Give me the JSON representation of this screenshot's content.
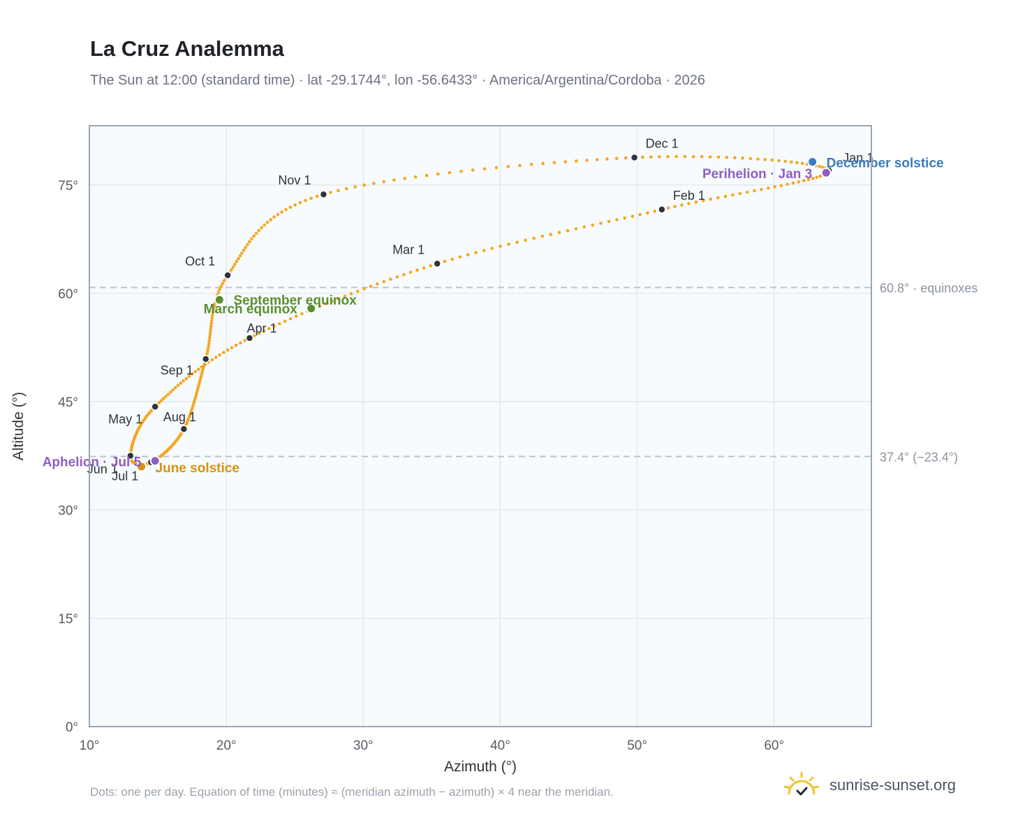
{
  "title": "La Cruz Analemma",
  "subtitle": "The Sun at 12:00 (standard time) · lat -29.1744°, lon -56.6433° · America/Argentina/Cordoba · 2026",
  "footnote": "Dots: one per day. Equation of time (minutes) ≈ (meridian azimuth − azimuth) × 4 near the meridian.",
  "brand": {
    "text": "sunrise-sunset.org",
    "icon": "sun-logo-icon"
  },
  "colors": {
    "curve": "#f5a623",
    "month_marker": "#2d3339",
    "equinox": "#5a8f2e",
    "june_solstice": "#d4920f",
    "december_solstice": "#3a7bbf",
    "apsis": "#8f5fbf",
    "grid": "#e3e8ee",
    "plot_bg": "#f8fbfd",
    "frame": "#9aa5b4"
  },
  "chart_data": {
    "type": "scatter",
    "xlabel": "Azimuth (°)",
    "ylabel": "Altitude (°)",
    "xlim": [
      10,
      67.1
    ],
    "ylim": [
      0,
      83.2
    ],
    "grid": true,
    "x_ticks": [
      "10°",
      "20°",
      "30°",
      "40°",
      "50°",
      "60°"
    ],
    "y_ticks": [
      "0°",
      "15°",
      "30°",
      "45°",
      "60°",
      "75°"
    ],
    "reference_lines": [
      {
        "y": 60.8,
        "label": "60.8° · equinoxes"
      },
      {
        "y": 37.4,
        "label": "37.4° (−23.4°)"
      }
    ],
    "month_markers": [
      {
        "label": "Jan 1",
        "azimuth": 64.0,
        "altitude": 77.0
      },
      {
        "label": "Feb 1",
        "azimuth": 51.8,
        "altitude": 71.6
      },
      {
        "label": "Mar 1",
        "azimuth": 35.4,
        "altitude": 64.1
      },
      {
        "label": "Apr 1",
        "azimuth": 21.7,
        "altitude": 53.8
      },
      {
        "label": "May 1",
        "azimuth": 14.8,
        "altitude": 44.3
      },
      {
        "label": "Jun 1",
        "azimuth": 13.0,
        "altitude": 37.5
      },
      {
        "label": "Jul 1",
        "azimuth": 14.5,
        "altitude": 36.6
      },
      {
        "label": "Aug 1",
        "azimuth": 16.9,
        "altitude": 41.2
      },
      {
        "label": "Sep 1",
        "azimuth": 18.5,
        "altitude": 50.9
      },
      {
        "label": "Oct 1",
        "azimuth": 20.1,
        "altitude": 62.5
      },
      {
        "label": "Nov 1",
        "azimuth": 27.1,
        "altitude": 73.7
      },
      {
        "label": "Dec 1",
        "azimuth": 49.8,
        "altitude": 78.8
      }
    ],
    "events": [
      {
        "label": "March equinox",
        "azimuth": 26.2,
        "altitude": 57.9,
        "kind": "equinox"
      },
      {
        "label": "September equinox",
        "azimuth": 19.5,
        "altitude": 59.1,
        "kind": "equinox"
      },
      {
        "label": "June solstice",
        "azimuth": 13.8,
        "altitude": 36.0,
        "kind": "june_solstice"
      },
      {
        "label": "December solstice",
        "azimuth": 62.8,
        "altitude": 78.2,
        "kind": "december_solstice"
      },
      {
        "label": "Perihelion · Jan 3",
        "azimuth": 63.8,
        "altitude": 76.7,
        "kind": "apsis"
      },
      {
        "label": "Aphelion · Jul 5",
        "azimuth": 14.8,
        "altitude": 36.8,
        "kind": "apsis"
      }
    ]
  }
}
